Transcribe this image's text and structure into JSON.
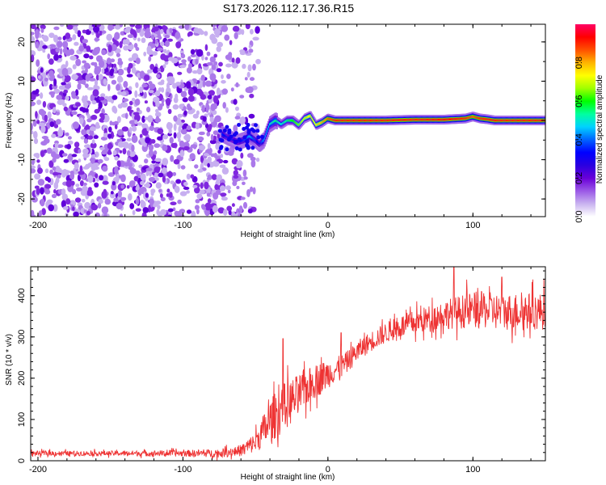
{
  "title": "S173.2026.112.17.36.R15",
  "chart_data": [
    {
      "type": "heatmap",
      "name": "spectrogram",
      "xlabel": "Height of straight line (km)",
      "ylabel": "Frequency (Hz)",
      "xlim": [
        -205,
        150
      ],
      "ylim": [
        -24.5,
        24.5
      ],
      "xticks": [
        -200,
        -100,
        0,
        100
      ],
      "xtick_labels": [
        "-200",
        "-100",
        "0",
        "100"
      ],
      "yticks": [
        -20,
        -10,
        0,
        10,
        20
      ],
      "ytick_labels": [
        "-20",
        "-10",
        "0",
        "10",
        "20"
      ],
      "colorbar": {
        "label": "Normalized spectral amplitude",
        "range": [
          0,
          1
        ],
        "ticks": [
          0.0,
          0.2,
          0.4,
          0.6,
          0.8
        ],
        "tick_labels": [
          "0.0",
          "0.2",
          "0.4",
          "0.6",
          "0.8"
        ],
        "colors": [
          "#ffffff",
          "#c9b3f0",
          "#9b59e6",
          "#6a00d9",
          "#2a00e0",
          "#0000ff",
          "#0064ff",
          "#00d2ff",
          "#00ffa0",
          "#00ff00",
          "#a0ff00",
          "#ffff00",
          "#ffb400",
          "#ff5000",
          "#ff0000",
          "#ff0064"
        ]
      },
      "noise_region": {
        "x_range": [
          -205,
          -60
        ],
        "y_range": [
          -24.5,
          24.5
        ],
        "value": 0.12
      },
      "signal_trace": {
        "x": [
          -73,
          -68,
          -62,
          -58,
          -54,
          -50,
          -47,
          -44,
          -40,
          -36,
          -32,
          -28,
          -24,
          -20,
          -16,
          -12,
          -8,
          -4,
          0,
          5,
          20,
          40,
          60,
          80,
          95,
          100,
          105,
          110,
          115,
          120,
          130,
          140,
          150
        ],
        "y": [
          -3.5,
          -4.5,
          -5.5,
          -5,
          -4,
          -5,
          -6,
          -5,
          -1,
          0,
          -1,
          0,
          0,
          -1.2,
          0.5,
          1.2,
          -1.2,
          -0.5,
          0.5,
          0,
          0,
          0,
          0.2,
          0.2,
          0.5,
          1,
          0.5,
          0.3,
          0,
          0,
          0,
          0,
          0
        ],
        "amplitude": [
          0.35,
          0.3,
          0.3,
          0.35,
          0.45,
          0.35,
          0.3,
          0.45,
          0.5,
          0.55,
          0.5,
          0.55,
          0.6,
          0.65,
          0.7,
          0.75,
          0.75,
          0.8,
          0.85,
          0.9,
          0.9,
          0.9,
          0.9,
          0.92,
          0.9,
          0.85,
          0.9,
          0.9,
          0.9,
          0.9,
          0.9,
          0.9,
          0.9
        ]
      }
    },
    {
      "type": "line",
      "name": "snr",
      "xlabel": "Height of straight line (km)",
      "ylabel": "SNR (10 * v/v)",
      "xlim": [
        -205,
        150
      ],
      "ylim": [
        0,
        470
      ],
      "xticks": [
        -200,
        -100,
        0,
        100
      ],
      "xtick_labels": [
        "-200",
        "-100",
        "0",
        "100"
      ],
      "yticks": [
        0,
        100,
        200,
        300,
        400
      ],
      "ytick_labels": [
        "0",
        "100",
        "200",
        "300",
        "400"
      ],
      "color": "#ee3333",
      "series": [
        {
          "name": "SNR",
          "trend_x": [
            -205,
            -150,
            -100,
            -75,
            -60,
            -50,
            -45,
            -40,
            -35,
            -30,
            -25,
            -20,
            -15,
            -10,
            -5,
            0,
            5,
            10,
            15,
            20,
            30,
            40,
            50,
            60,
            70,
            80,
            90,
            100,
            110,
            120,
            130,
            140,
            150
          ],
          "trend_y": [
            18,
            18,
            18,
            18,
            25,
            45,
            70,
            95,
            115,
            130,
            145,
            160,
            175,
            190,
            200,
            210,
            220,
            230,
            245,
            265,
            290,
            310,
            325,
            335,
            345,
            355,
            360,
            365,
            365,
            360,
            362,
            362,
            362
          ],
          "noise_amp": [
            6,
            6,
            8,
            10,
            14,
            25,
            40,
            50,
            60,
            60,
            55,
            50,
            45,
            42,
            40,
            35,
            30,
            28,
            26,
            25,
            25,
            25,
            28,
            30,
            32,
            35,
            40,
            45,
            45,
            45,
            45,
            45,
            45
          ],
          "peaks": [
            {
              "x": -31,
              "y": 296
            },
            {
              "x": 9,
              "y": 310
            },
            {
              "x": 87,
              "y": 470
            },
            {
              "x": 120,
              "y": 445
            }
          ]
        }
      ]
    }
  ]
}
